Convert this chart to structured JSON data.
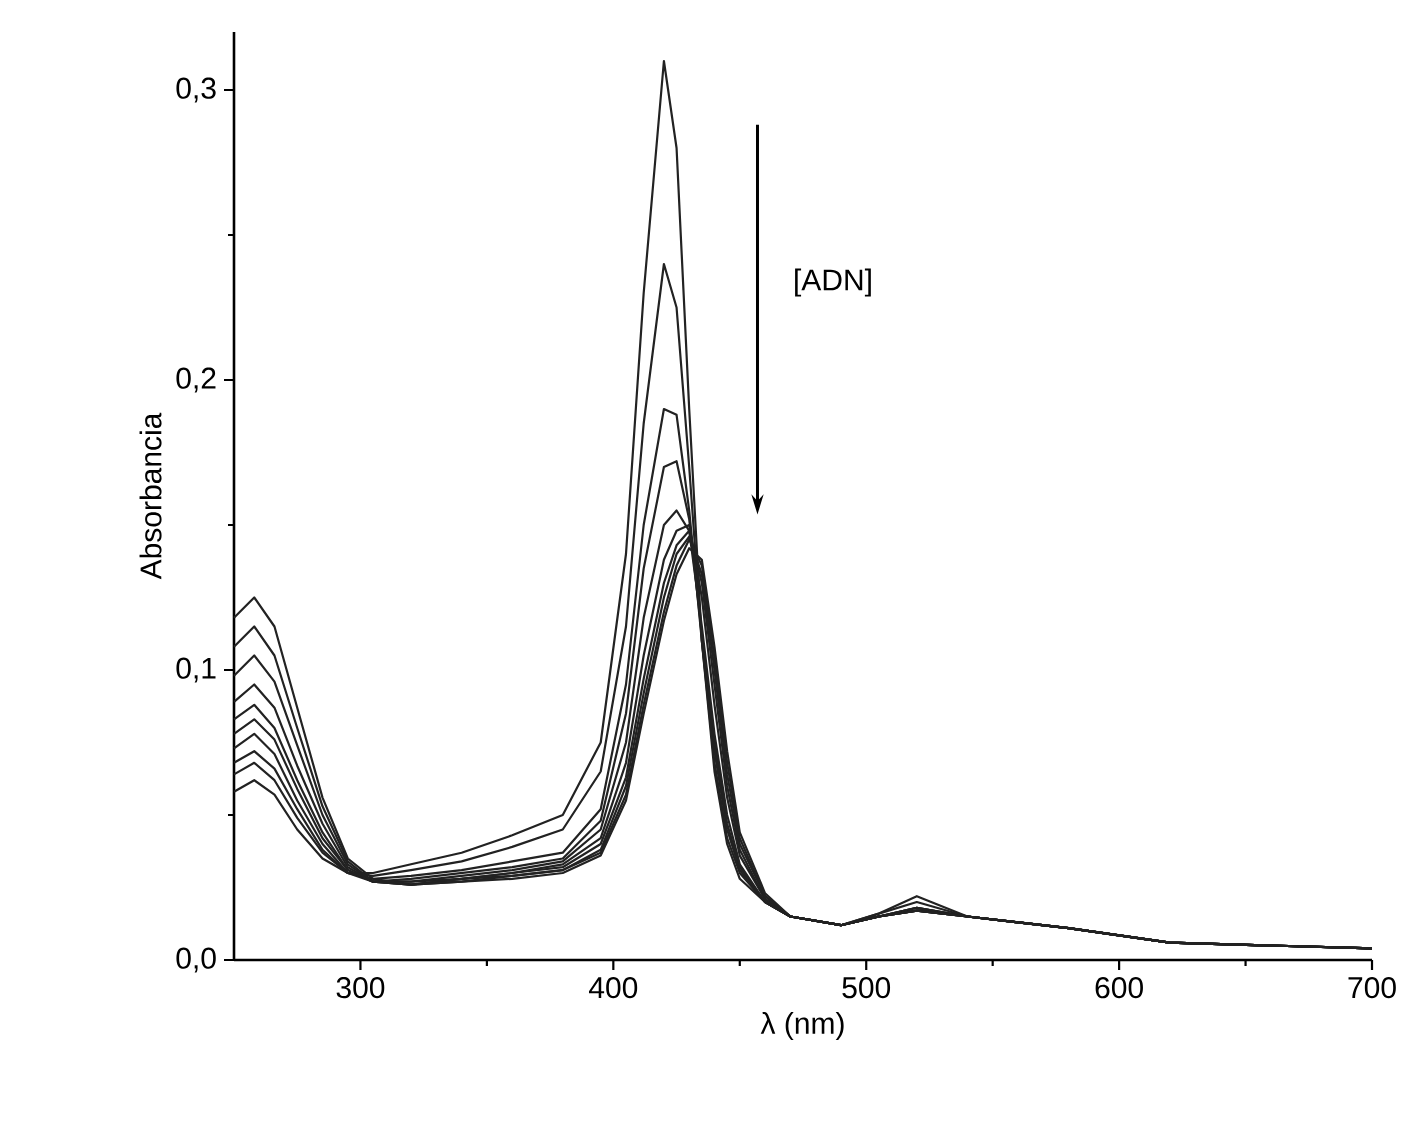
{
  "chart_data": {
    "type": "line",
    "xlabel": "λ (nm)",
    "ylabel": "Absorbancia",
    "annotations": [
      "[ADN]"
    ],
    "x": [
      250,
      258,
      266,
      275,
      285,
      295,
      305,
      320,
      340,
      360,
      380,
      395,
      405,
      412,
      420,
      425,
      430,
      435,
      440,
      445,
      450,
      460,
      470,
      490,
      505,
      520,
      540,
      580,
      620,
      700
    ],
    "series": [
      {
        "color": "#222222",
        "values": [
          0.058,
          0.062,
          0.057,
          0.045,
          0.035,
          0.03,
          0.03,
          0.033,
          0.037,
          0.043,
          0.05,
          0.075,
          0.14,
          0.23,
          0.31,
          0.28,
          0.19,
          0.11,
          0.065,
          0.04,
          0.028,
          0.02,
          0.015,
          0.012,
          0.016,
          0.022,
          0.015,
          0.011,
          0.006,
          0.004
        ]
      },
      {
        "color": "#222222",
        "values": [
          0.064,
          0.068,
          0.062,
          0.049,
          0.037,
          0.03,
          0.029,
          0.031,
          0.034,
          0.039,
          0.045,
          0.065,
          0.115,
          0.185,
          0.24,
          0.225,
          0.17,
          0.11,
          0.068,
          0.042,
          0.03,
          0.02,
          0.015,
          0.012,
          0.016,
          0.02,
          0.015,
          0.011,
          0.006,
          0.004
        ]
      },
      {
        "color": "#222222",
        "values": [
          0.068,
          0.072,
          0.066,
          0.052,
          0.038,
          0.03,
          0.028,
          0.029,
          0.031,
          0.034,
          0.037,
          0.052,
          0.095,
          0.15,
          0.19,
          0.188,
          0.155,
          0.11,
          0.072,
          0.045,
          0.031,
          0.02,
          0.015,
          0.012,
          0.015,
          0.018,
          0.015,
          0.011,
          0.006,
          0.004
        ]
      },
      {
        "color": "#222222",
        "values": [
          0.073,
          0.078,
          0.071,
          0.055,
          0.04,
          0.03,
          0.027,
          0.028,
          0.03,
          0.032,
          0.035,
          0.048,
          0.085,
          0.135,
          0.17,
          0.172,
          0.152,
          0.112,
          0.075,
          0.047,
          0.032,
          0.02,
          0.015,
          0.012,
          0.015,
          0.018,
          0.015,
          0.011,
          0.006,
          0.004
        ]
      },
      {
        "color": "#222222",
        "values": [
          0.078,
          0.083,
          0.076,
          0.059,
          0.042,
          0.031,
          0.027,
          0.027,
          0.029,
          0.031,
          0.034,
          0.045,
          0.075,
          0.118,
          0.15,
          0.155,
          0.148,
          0.115,
          0.078,
          0.05,
          0.033,
          0.02,
          0.015,
          0.012,
          0.015,
          0.018,
          0.015,
          0.011,
          0.006,
          0.004
        ]
      },
      {
        "color": "#222222",
        "values": [
          0.083,
          0.088,
          0.08,
          0.062,
          0.044,
          0.031,
          0.027,
          0.027,
          0.028,
          0.03,
          0.033,
          0.042,
          0.068,
          0.105,
          0.138,
          0.148,
          0.15,
          0.125,
          0.088,
          0.056,
          0.036,
          0.021,
          0.015,
          0.012,
          0.015,
          0.017,
          0.015,
          0.011,
          0.006,
          0.004
        ]
      },
      {
        "color": "#222222",
        "values": [
          0.089,
          0.095,
          0.087,
          0.067,
          0.047,
          0.032,
          0.027,
          0.026,
          0.028,
          0.03,
          0.032,
          0.04,
          0.063,
          0.097,
          0.13,
          0.143,
          0.148,
          0.13,
          0.095,
          0.06,
          0.038,
          0.021,
          0.015,
          0.012,
          0.015,
          0.017,
          0.015,
          0.011,
          0.006,
          0.004
        ]
      },
      {
        "color": "#222222",
        "values": [
          0.098,
          0.105,
          0.096,
          0.074,
          0.05,
          0.033,
          0.027,
          0.026,
          0.028,
          0.029,
          0.031,
          0.038,
          0.06,
          0.092,
          0.125,
          0.14,
          0.146,
          0.133,
          0.1,
          0.064,
          0.04,
          0.022,
          0.015,
          0.012,
          0.015,
          0.017,
          0.015,
          0.011,
          0.006,
          0.004
        ]
      },
      {
        "color": "#222222",
        "values": [
          0.108,
          0.115,
          0.105,
          0.08,
          0.053,
          0.034,
          0.027,
          0.026,
          0.027,
          0.029,
          0.031,
          0.037,
          0.057,
          0.088,
          0.12,
          0.136,
          0.145,
          0.136,
          0.104,
          0.068,
          0.042,
          0.022,
          0.015,
          0.012,
          0.015,
          0.017,
          0.015,
          0.011,
          0.006,
          0.004
        ]
      },
      {
        "color": "#222222",
        "values": [
          0.118,
          0.125,
          0.115,
          0.087,
          0.056,
          0.035,
          0.028,
          0.026,
          0.027,
          0.028,
          0.03,
          0.036,
          0.055,
          0.085,
          0.117,
          0.133,
          0.142,
          0.138,
          0.108,
          0.072,
          0.044,
          0.023,
          0.015,
          0.012,
          0.015,
          0.017,
          0.015,
          0.011,
          0.006,
          0.004
        ]
      }
    ],
    "xlim": [
      250,
      700
    ],
    "xticks": [
      300,
      400,
      500,
      600,
      700
    ],
    "ylim": [
      0,
      0.32
    ],
    "yticks": [
      {
        "value": 0,
        "label": "0,0"
      },
      {
        "value": 0.1,
        "label": "0,1"
      },
      {
        "value": 0.2,
        "label": "0,2"
      },
      {
        "value": 0.3,
        "label": "0,3"
      }
    ],
    "marker": "none",
    "line_style": "solid"
  }
}
